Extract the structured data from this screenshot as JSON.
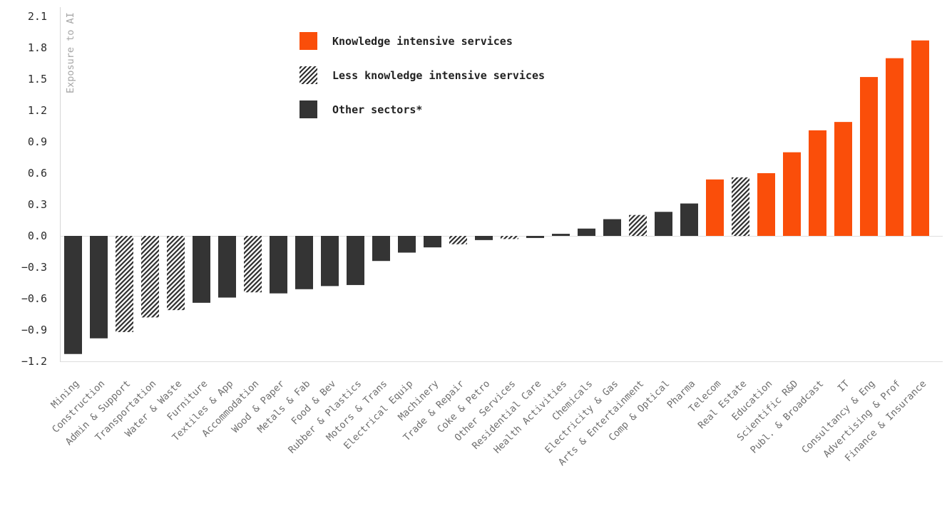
{
  "figure": {
    "ylabel": "Exposure to AI",
    "legend": {
      "items": [
        {
          "label": "Knowledge intensive services",
          "style": "kis",
          "swatch": "orange-solid"
        },
        {
          "label": "Less knowledge intensive services",
          "style": "lkis",
          "swatch": "diagonal-hatch"
        },
        {
          "label": "Other sectors*",
          "style": "other",
          "swatch": "dark-solid"
        }
      ]
    }
  },
  "colors": {
    "knowledge_intensive": "#fa4e0a",
    "other_sectors": "#343434",
    "hatch": "#2e2e2e",
    "axis_line": "#d6d6d6",
    "zero_line": "#dedede",
    "y_tick_text": "#2b2b2b",
    "x_tick_text": "#6f6f6f",
    "y_label_text": "#a6a6a6",
    "background": "#ffffff"
  },
  "chart_data": {
    "type": "bar",
    "title": "",
    "xlabel": "",
    "ylabel": "Exposure to AI",
    "ylim": [
      -1.2,
      2.2
    ],
    "yticks": [
      2.1,
      1.8,
      1.5,
      1.2,
      0.9,
      0.6,
      0.3,
      0.0,
      -0.3,
      -0.6,
      -0.9,
      -1.2
    ],
    "grid": false,
    "legend_position": "upper-left-inside",
    "group_labels": {
      "kis": "Knowledge intensive services",
      "lkis": "Less knowledge intensive services",
      "other": "Other sectors*"
    },
    "categories": [
      "Mining",
      "Construction",
      "Admin & Support",
      "Transportation",
      "Water & Waste",
      "Furniture",
      "Textiles & App",
      "Accommodation",
      "Wood & Paper",
      "Metals & Fab",
      "Food & Bev",
      "Rubber & Plastics",
      "Motors & Trans",
      "Electrical Equip",
      "Machinery",
      "Trade & Repair",
      "Coke & Petro",
      "Other Services",
      "Residential Care",
      "Health Activities",
      "Chemicals",
      "Electricity & Gas",
      "Arts & Entertainment",
      "Comp & Optical",
      "Pharma",
      "Telecom",
      "Real Estate",
      "Education",
      "Scientific R&D",
      "Publ. & Broadcast",
      "IT",
      "Consultancy & Eng",
      "Advertising & Prof",
      "Finance & Insurance"
    ],
    "values": [
      -1.13,
      -0.98,
      -0.92,
      -0.78,
      -0.71,
      -0.64,
      -0.59,
      -0.54,
      -0.55,
      -0.51,
      -0.48,
      -0.47,
      -0.24,
      -0.16,
      -0.11,
      -0.08,
      -0.04,
      -0.03,
      -0.02,
      0.02,
      0.07,
      0.16,
      0.2,
      0.23,
      0.31,
      0.54,
      0.56,
      0.6,
      0.8,
      1.01,
      1.09,
      1.52,
      1.7,
      1.87
    ],
    "groups": [
      "other",
      "other",
      "lkis",
      "lkis",
      "lkis",
      "other",
      "other",
      "lkis",
      "other",
      "other",
      "other",
      "other",
      "other",
      "other",
      "other",
      "lkis",
      "other",
      "lkis",
      "other",
      "other",
      "other",
      "other",
      "lkis",
      "other",
      "other",
      "kis",
      "lkis",
      "kis",
      "kis",
      "kis",
      "kis",
      "kis",
      "kis",
      "kis"
    ]
  }
}
